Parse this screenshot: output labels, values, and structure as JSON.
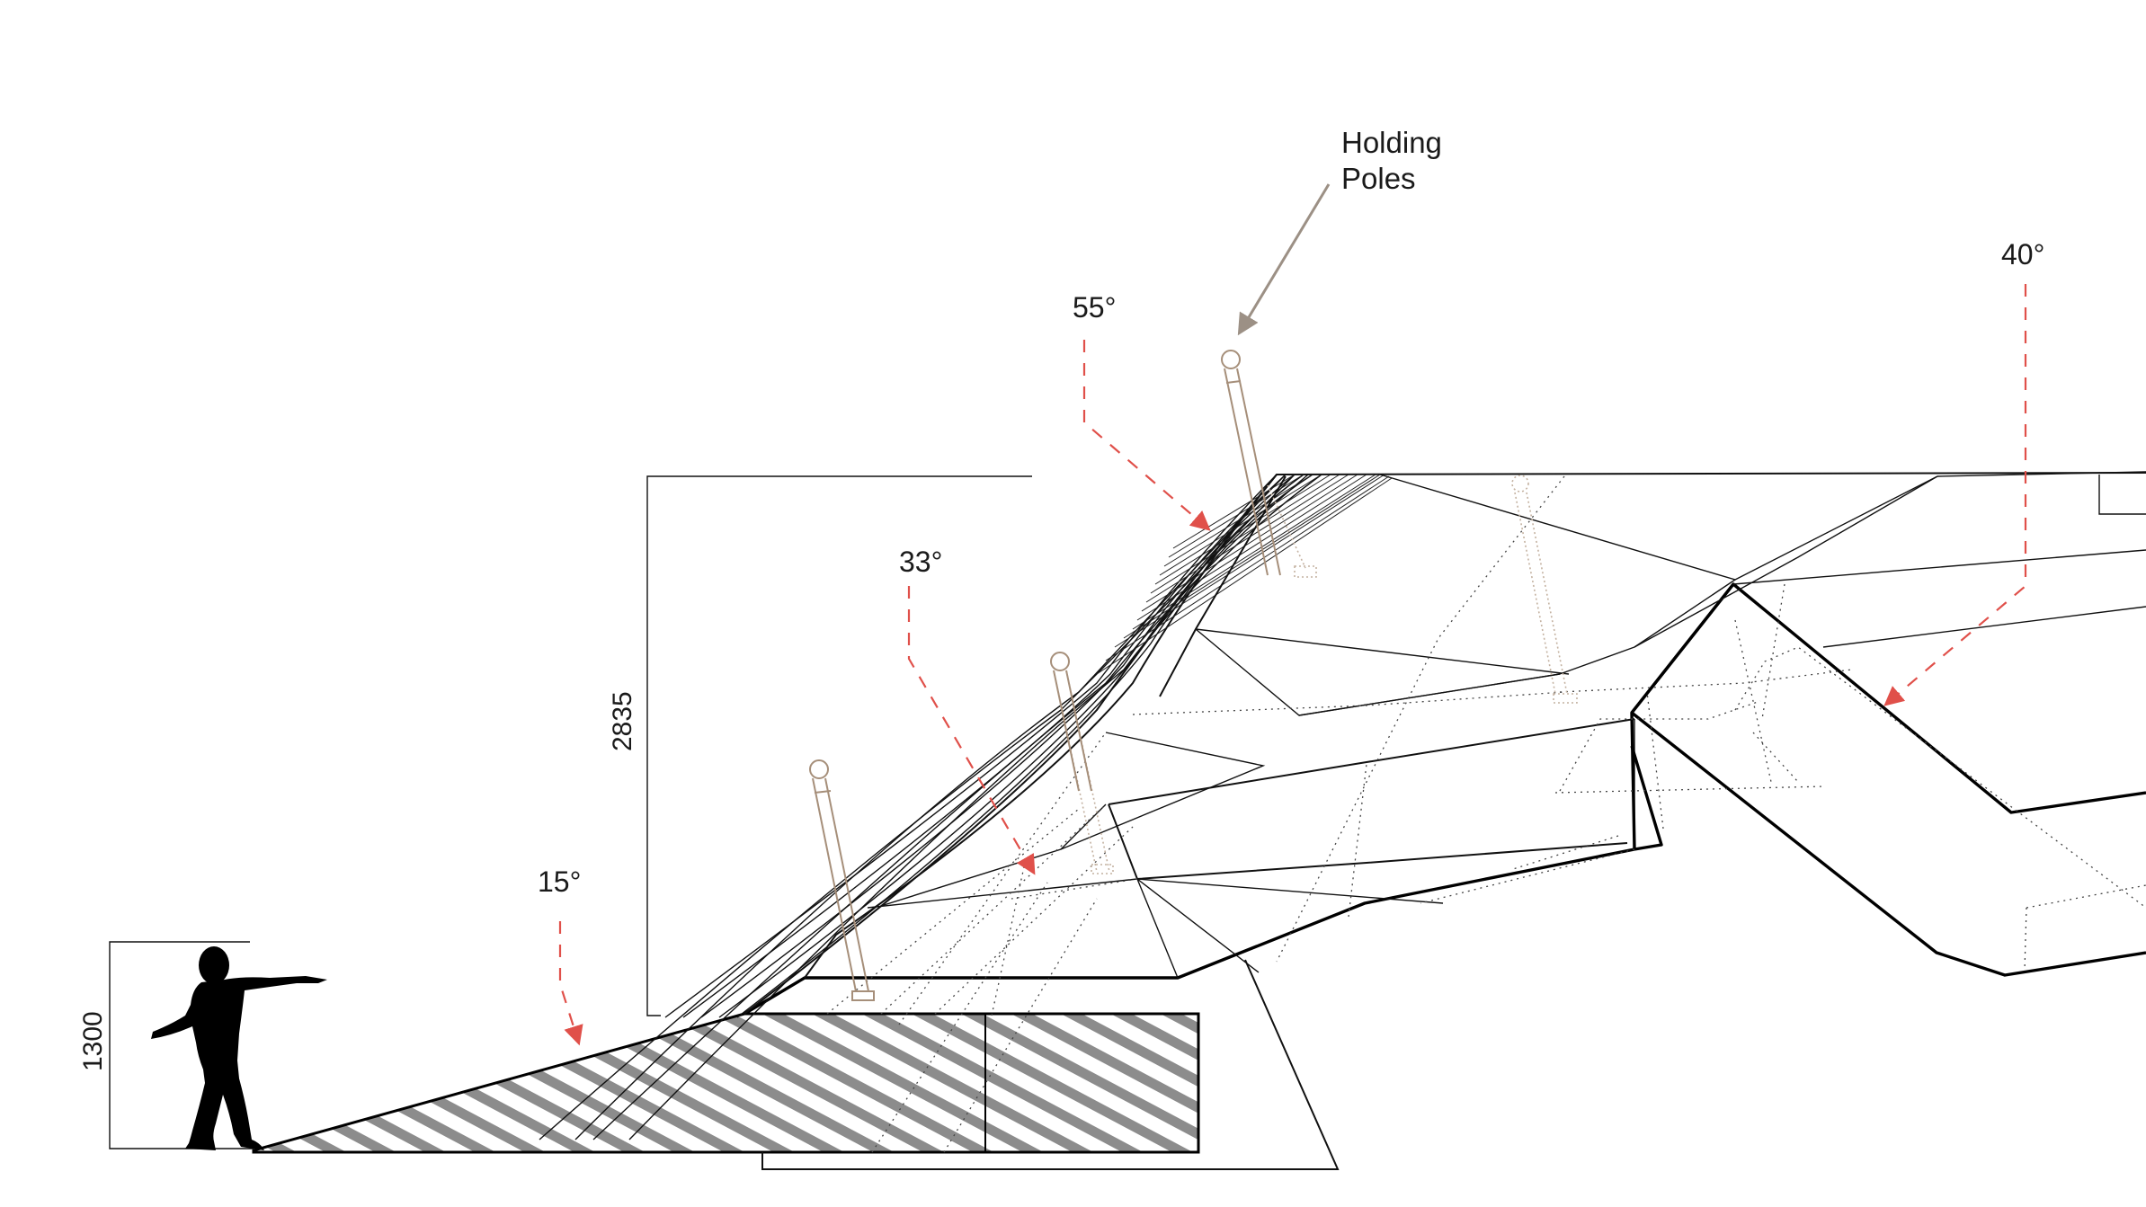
{
  "labels": {
    "callout_line1": "Holding",
    "callout_line2": "Poles",
    "angle_55": "55°",
    "angle_33": "33°",
    "angle_15": "15°",
    "angle_40": "40°",
    "dim_height_total": "2835",
    "dim_height_person": "1300"
  },
  "colors": {
    "linework": "#111111",
    "angle_arrows": "#e0504a",
    "callout_arrow": "#9c9085",
    "poles": "#a68f7a",
    "hatch": "#8c8c8c",
    "silhouette": "#000000"
  },
  "icons": {
    "figure": "person-silhouette-icon",
    "pole": "holding-pole-icon"
  }
}
